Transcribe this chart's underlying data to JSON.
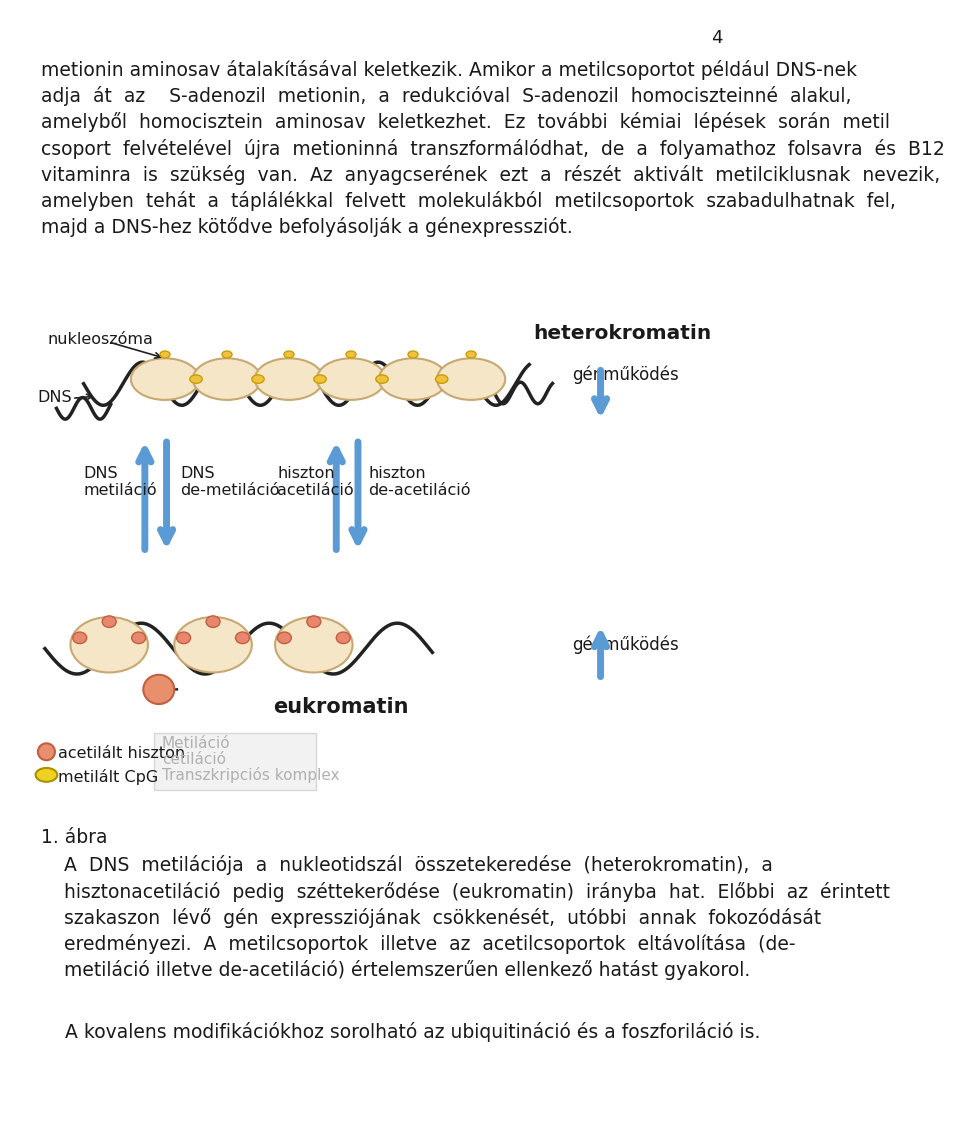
{
  "page_number": "4",
  "bg_color": "#ffffff",
  "text_color": "#1a1a1a",
  "diagram_label_heterokromatin": "heterokromatin",
  "diagram_label_nukleoszoma": "nukleoszóma",
  "diagram_label_dns": "DNS",
  "diagram_label_genmukodes1": "génműködés",
  "diagram_label_dns_metilacio": "DNS\nmetiláció",
  "diagram_label_dns_demetilacio": "DNS\nde-metiláció",
  "diagram_label_hiszton_acetilacio": "hiszton\nacetiláció",
  "diagram_label_hiszton_diacetilacio": "hiszton\nde-acetiláció",
  "diagram_label_genmukodes2": "génműködés",
  "diagram_label_eukromatin": "eukromatin",
  "legend_acetilalt": "acetilált hiszton",
  "legend_metilalt": "metilált CpG",
  "legend_metilacio": "Metiláció",
  "legend_acetilacio": "cetiláció",
  "legend_transzkripcios": "Transzkripciós komplex",
  "caption_number": "1. ábra",
  "last_text": "A kovalens modifikációkhoz sorolható az ubiquitináció és a foszforiláció is.",
  "arrow_blue": "#5b9bd5",
  "nucleosome_fill": "#f5e6c8",
  "nucleosome_stroke": "#c8a870",
  "dna_color": "#222222",
  "salmon_color": "#e8866e",
  "yellow_fill": "#f0d020",
  "lines_p1": [
    "metionin aminosav átalakításával keletkezik. Amikor a metilcsoportot például DNS-nek",
    "adja  át  az    S-adenozil  metionin,  a  redukcióval  S-adenozil  homociszteinné  alakul,",
    "amelyből  homocisztein  aminosav  keletkezhet.  Ez  további  kémiai  lépések  során  metil",
    "csoport  felvételével  újra  metioninná  transzformálódhat,  de  a  folyamathoz  folsavra  és  B12",
    "vitaminra  is  szükség  van.  Az  anyagcserének  ezt  a  részét  aktivált  metilciklusnak  nevezik,",
    "amelyben  tehát  a  táplálékkal  felvett  molekulákból  metilcsoportok  szabadulhatnak  fel,",
    "majd a DNS-hez kötődve befolyásolják a génexpressziót."
  ],
  "caption_lines": [
    "A  DNS  metilációja  a  nukleotidszál  összetekeredése  (heterokromatin),  a",
    "hisztonacetiláció  pedig  széttekerődése  (eukromatin)  irányba  hat.  Előbbi  az  érintett",
    "szakaszon  lévő  gén  expressziójának  csökkenését,  utóbbi  annak  fokozódását",
    "eredményezi.  A  metilcsoportok  illetve  az  acetilcsoportok  eltávolítása  (de-",
    "metiláció illetve de-acetiláció) értelemszerűen ellenkező hatást gyakorol."
  ]
}
